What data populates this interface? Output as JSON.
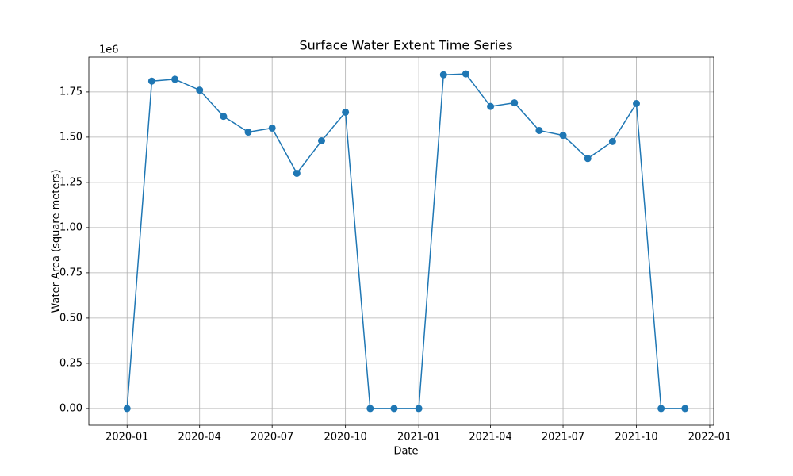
{
  "chart_data": {
    "type": "line",
    "title": "Surface Water Extent Time Series",
    "x_label": "Date",
    "y_label": "Water Area (square meters)",
    "y_offset_text": "1e6",
    "x": [
      "2020-01",
      "2020-02",
      "2020-03",
      "2020-04",
      "2020-05",
      "2020-06",
      "2020-07",
      "2020-08",
      "2020-09",
      "2020-10",
      "2020-11",
      "2020-12",
      "2021-01",
      "2021-02",
      "2021-03",
      "2021-04",
      "2021-05",
      "2021-06",
      "2021-07",
      "2021-08",
      "2021-09",
      "2021-10",
      "2021-11",
      "2021-12"
    ],
    "values": [
      0,
      1810000,
      1820000,
      1760000,
      1615000,
      1528000,
      1550000,
      1300000,
      1480000,
      1638000,
      0,
      0,
      0,
      1845000,
      1850000,
      1670000,
      1690000,
      1537000,
      1510000,
      1382000,
      1476000,
      1686000,
      0,
      0
    ],
    "color": "#1f77b4",
    "xlim": [
      "2019-11-14",
      "2022-01-06"
    ],
    "xticks": [
      "2020-01",
      "2020-04",
      "2020-07",
      "2020-10",
      "2021-01",
      "2021-04",
      "2021-07",
      "2021-10",
      "2022-01"
    ],
    "ylim": [
      -92500,
      1942500
    ],
    "yticks": [
      {
        "value": 0,
        "label": "0.00"
      },
      {
        "value": 250000,
        "label": "0.25"
      },
      {
        "value": 500000,
        "label": "0.50"
      },
      {
        "value": 750000,
        "label": "0.75"
      },
      {
        "value": 1000000,
        "label": "1.00"
      },
      {
        "value": 1250000,
        "label": "1.25"
      },
      {
        "value": 1500000,
        "label": "1.50"
      },
      {
        "value": 1750000,
        "label": "1.75"
      }
    ],
    "grid": true
  }
}
